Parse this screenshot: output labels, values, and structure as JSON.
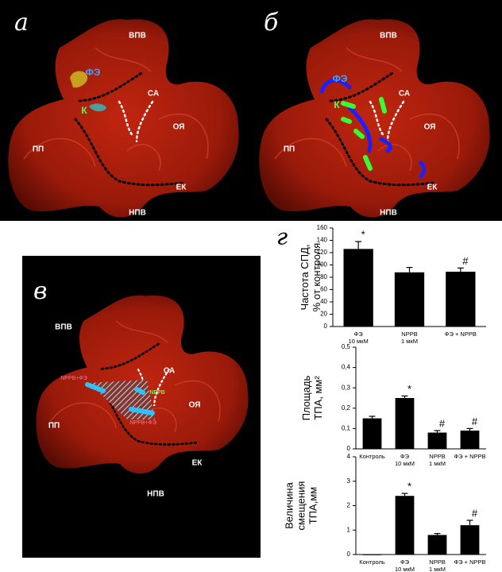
{
  "panels": [
    {
      "letter": "а",
      "labels": [
        "ВПВ",
        "ФЭ",
        "К",
        "СА",
        "ОЯ",
        "ПП",
        "ЕК",
        "НПВ"
      ]
    },
    {
      "letter": "б",
      "labels": [
        "ВПВ",
        "ФЭ",
        "К",
        "СА",
        "ОЯ",
        "ПП",
        "ЕК",
        "НПВ"
      ]
    },
    {
      "letter": "в",
      "labels": [
        "ВПВ",
        "NPPB+ФЭ",
        "NPPB",
        "NPPB+ФЭ",
        "СА",
        "ОЯ",
        "ПП",
        "ЕК",
        "НПВ"
      ]
    }
  ],
  "chart_letter": "г",
  "chart_data": [
    {
      "type": "bar",
      "ylabel": [
        "Частота СПД,",
        "% от контроля"
      ],
      "categories": [
        [
          "ФЭ",
          "10 мкМ"
        ],
        [
          "NPPB",
          "1 мкМ"
        ],
        [
          "ФЭ + NPPB"
        ]
      ],
      "values": [
        126,
        88,
        89
      ],
      "errors": [
        12,
        8,
        6
      ],
      "bar_labels": [
        "*",
        null,
        "#"
      ],
      "color": "#000000",
      "ylim": [
        0,
        160
      ],
      "yticks": [
        0,
        20,
        40,
        60,
        80,
        100,
        120,
        140,
        160
      ]
    },
    {
      "type": "bar",
      "ylabel": [
        "Площадь",
        "ТПА, мм²"
      ],
      "categories": [
        [
          "Контроль"
        ],
        [
          "ФЭ",
          "10 мкМ"
        ],
        [
          "NPPB",
          "1 мкМ"
        ],
        [
          "ФЭ + NPPB"
        ]
      ],
      "values": [
        0.15,
        0.25,
        0.08,
        0.09
      ],
      "errors": [
        0.01,
        0.01,
        0.01,
        0.01
      ],
      "bar_labels": [
        null,
        "*",
        "#",
        "#"
      ],
      "color": "#000000",
      "ylim": [
        0,
        0.5
      ],
      "yticks": [
        0,
        {
          "value": 0.1,
          "label": "0,1"
        },
        {
          "value": 0.2,
          "label": "0,2"
        },
        {
          "value": 0.3,
          "label": "0,3"
        },
        {
          "value": 0.4,
          "label": "0,4"
        },
        {
          "value": 0.5,
          "label": "0,5"
        }
      ]
    },
    {
      "type": "bar",
      "ylabel": [
        "Величина",
        "смещения",
        "ТПА,мм"
      ],
      "categories": [
        [
          "Контроль"
        ],
        [
          "ФЭ",
          "10 мкМ"
        ],
        [
          "NPPB",
          "1 мкМ"
        ],
        [
          "ФЭ + NPPB"
        ]
      ],
      "values": [
        0,
        2.4,
        0.8,
        1.2
      ],
      "errors": [
        null,
        0.1,
        0.06,
        0.2
      ],
      "bar_labels": [
        null,
        "*",
        null,
        "#"
      ],
      "color": "#000000",
      "ylim": [
        0,
        4
      ],
      "yticks": [
        0,
        1,
        2,
        3,
        4
      ]
    }
  ]
}
